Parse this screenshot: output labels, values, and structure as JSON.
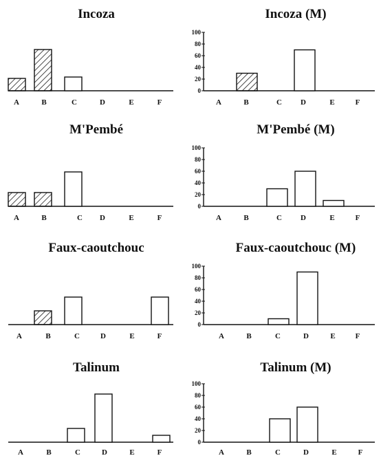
{
  "chart_data": [
    {
      "type": "bar",
      "title": "Incoza",
      "categories": [
        "A",
        "B",
        "C",
        "D",
        "E",
        "F"
      ],
      "values": [
        18,
        60,
        20,
        0,
        0,
        0
      ],
      "hatched": [
        true,
        true,
        false,
        false,
        false,
        false
      ],
      "ylim": [
        0,
        100
      ],
      "y_ticks": [],
      "xlabel": "",
      "ylabel": ""
    },
    {
      "type": "bar",
      "title": "Incoza (M)",
      "categories": [
        "A",
        "B",
        "C",
        "D",
        "E",
        "F"
      ],
      "values": [
        0,
        30,
        0,
        70,
        0,
        0
      ],
      "hatched": [
        false,
        true,
        false,
        false,
        false,
        false
      ],
      "ylim": [
        0,
        100
      ],
      "y_ticks": [
        "0",
        "20",
        "40",
        "60",
        "80",
        "100"
      ],
      "xlabel": "",
      "ylabel": ""
    },
    {
      "type": "bar",
      "title": "M'Pembé",
      "categories": [
        "A",
        "B",
        "C",
        "D",
        "E",
        "F"
      ],
      "values": [
        20,
        20,
        50,
        0,
        0,
        0
      ],
      "hatched": [
        true,
        true,
        false,
        false,
        false,
        false
      ],
      "ylim": [
        0,
        100
      ],
      "y_ticks": [],
      "xlabel": "",
      "ylabel": ""
    },
    {
      "type": "bar",
      "title": "M'Pembé (M)",
      "categories": [
        "A",
        "B",
        "C",
        "D",
        "E",
        "F"
      ],
      "values": [
        0,
        0,
        30,
        60,
        10,
        0
      ],
      "hatched": [
        false,
        false,
        false,
        false,
        false,
        false
      ],
      "ylim": [
        0,
        100
      ],
      "y_ticks": [
        "0",
        "20",
        "40",
        "60",
        "80",
        "100"
      ],
      "xlabel": "",
      "ylabel": ""
    },
    {
      "type": "bar",
      "title": "Faux-caoutchouc",
      "categories": [
        "A",
        "B",
        "C",
        "D",
        "E",
        "F"
      ],
      "values": [
        0,
        20,
        40,
        0,
        0,
        40
      ],
      "hatched": [
        false,
        true,
        false,
        false,
        false,
        false
      ],
      "ylim": [
        0,
        100
      ],
      "y_ticks": [],
      "xlabel": "",
      "ylabel": ""
    },
    {
      "type": "bar",
      "title": "Faux-caoutchouc (M)",
      "categories": [
        "A",
        "B",
        "C",
        "D",
        "E",
        "F"
      ],
      "values": [
        0,
        0,
        10,
        90,
        0,
        0
      ],
      "hatched": [
        false,
        false,
        false,
        false,
        false,
        false
      ],
      "ylim": [
        0,
        100
      ],
      "y_ticks": [
        "0",
        "20",
        "40",
        "60",
        "80",
        "100"
      ],
      "xlabel": "",
      "ylabel": ""
    },
    {
      "type": "bar",
      "title": "Talinum",
      "categories": [
        "A",
        "B",
        "C",
        "D",
        "E",
        "F"
      ],
      "values": [
        0,
        0,
        20,
        70,
        0,
        10
      ],
      "hatched": [
        false,
        false,
        false,
        false,
        false,
        false
      ],
      "ylim": [
        0,
        100
      ],
      "y_ticks": [],
      "xlabel": "",
      "ylabel": ""
    },
    {
      "type": "bar",
      "title": "Talinum (M)",
      "categories": [
        "A",
        "B",
        "C",
        "D",
        "E",
        "F"
      ],
      "values": [
        0,
        0,
        40,
        60,
        0,
        0
      ],
      "hatched": [
        false,
        false,
        false,
        false,
        false,
        false
      ],
      "ylim": [
        0,
        100
      ],
      "y_ticks": [
        "0",
        "20",
        "40",
        "60",
        "80",
        "100"
      ],
      "xlabel": "",
      "ylabel": ""
    }
  ],
  "colors": {
    "bar_stroke": "#111111",
    "bar_fill": "#ffffff",
    "hatch": "#111111"
  }
}
